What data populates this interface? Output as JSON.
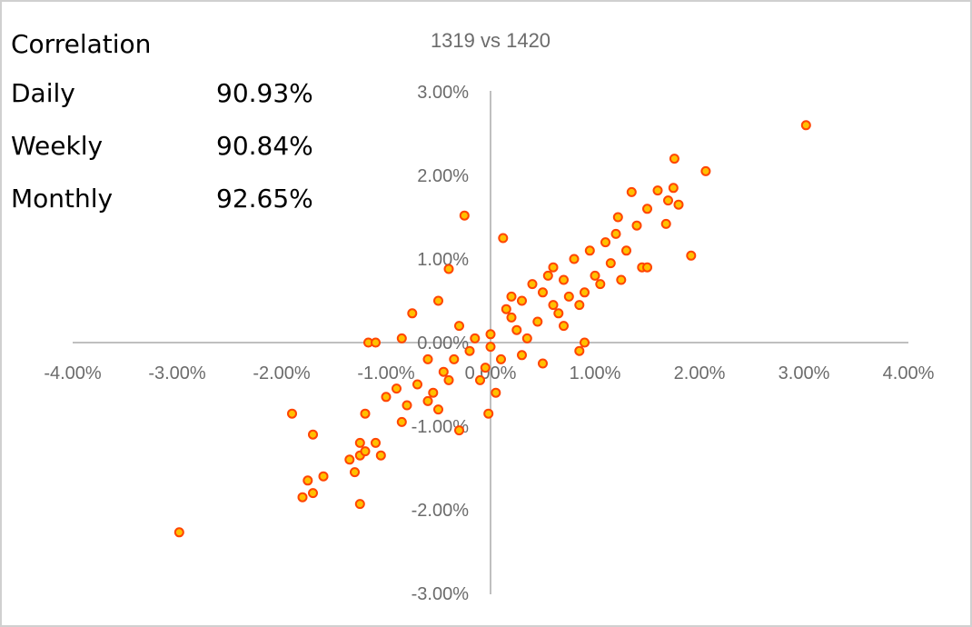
{
  "correlation": {
    "heading": "Correlation",
    "rows": [
      {
        "label": "Daily",
        "value": "90.93%"
      },
      {
        "label": "Weekly",
        "value": "90.84%"
      },
      {
        "label": "Monthly",
        "value": "92.65%"
      }
    ]
  },
  "colors": {
    "marker_fill": "#ffc000",
    "marker_stroke": "#ff4500",
    "axis": "#bfbfbf",
    "text": "#6b6b6b"
  },
  "chart_data": {
    "type": "scatter",
    "title": "1319 vs 1420",
    "xlabel": "",
    "ylabel": "",
    "xlim": [
      -4,
      4
    ],
    "ylim": [
      -3,
      3
    ],
    "x_ticks": [
      "-4.00%",
      "-3.00%",
      "-2.00%",
      "-1.00%",
      "0.00%",
      "1.00%",
      "2.00%",
      "3.00%",
      "4.00%"
    ],
    "y_ticks": [
      "3.00%",
      "2.00%",
      "1.00%",
      "0.00%",
      "-1.00%",
      "-2.00%",
      "-3.00%"
    ],
    "grid": false,
    "legend": "none",
    "series": [
      {
        "points": [
          [
            3.02,
            2.6
          ],
          [
            1.76,
            2.2
          ],
          [
            2.06,
            2.05
          ],
          [
            1.35,
            1.8
          ],
          [
            1.6,
            1.82
          ],
          [
            1.75,
            1.85
          ],
          [
            1.7,
            1.7
          ],
          [
            1.8,
            1.65
          ],
          [
            1.5,
            1.6
          ],
          [
            1.22,
            1.5
          ],
          [
            1.4,
            1.4
          ],
          [
            1.68,
            1.42
          ],
          [
            1.2,
            1.3
          ],
          [
            1.3,
            1.1
          ],
          [
            1.45,
            0.9
          ],
          [
            1.5,
            0.9
          ],
          [
            1.92,
            1.04
          ],
          [
            1.25,
            0.75
          ],
          [
            -0.25,
            1.52
          ],
          [
            0.12,
            1.25
          ],
          [
            -0.4,
            0.88
          ],
          [
            -0.5,
            0.5
          ],
          [
            -0.75,
            0.35
          ],
          [
            -1.17,
            0.0
          ],
          [
            -1.1,
            0.0
          ],
          [
            -0.85,
            0.05
          ],
          [
            -1.9,
            -0.85
          ],
          [
            -1.7,
            -1.1
          ],
          [
            -1.6,
            -1.6
          ],
          [
            -1.75,
            -1.65
          ],
          [
            -1.7,
            -1.8
          ],
          [
            -1.8,
            -1.85
          ],
          [
            -1.25,
            -1.93
          ],
          [
            -2.98,
            -2.27
          ],
          [
            -1.3,
            -1.55
          ],
          [
            -1.35,
            -1.4
          ],
          [
            -1.25,
            -1.35
          ],
          [
            -1.2,
            -1.3
          ],
          [
            -1.05,
            -1.35
          ],
          [
            -1.1,
            -1.2
          ],
          [
            -1.25,
            -1.2
          ],
          [
            -0.3,
            -1.05
          ],
          [
            -0.02,
            -0.85
          ],
          [
            -1.2,
            -0.85
          ],
          [
            -0.85,
            -0.95
          ],
          [
            -1.0,
            -0.65
          ],
          [
            0.85,
            -0.1
          ],
          [
            0.9,
            0.0
          ],
          [
            0.5,
            -0.25
          ],
          [
            -0.1,
            -0.45
          ],
          [
            0.05,
            -0.6
          ],
          [
            -0.5,
            -0.8
          ],
          [
            -0.6,
            -0.7
          ],
          [
            0.3,
            -0.15
          ],
          [
            0.7,
            0.2
          ],
          [
            0.4,
            0.7
          ],
          [
            0.8,
            1.0
          ],
          [
            0.95,
            1.1
          ],
          [
            0.6,
            0.9
          ],
          [
            1.0,
            0.8
          ],
          [
            0.2,
            0.3
          ],
          [
            0.0,
            0.1
          ],
          [
            -0.2,
            -0.1
          ],
          [
            -0.45,
            -0.35
          ],
          [
            -0.7,
            -0.5
          ],
          [
            0.5,
            0.6
          ],
          [
            1.1,
            1.2
          ],
          [
            0.75,
            0.55
          ],
          [
            0.3,
            0.5
          ],
          [
            -0.3,
            0.2
          ],
          [
            0.1,
            -0.2
          ],
          [
            -0.6,
            -0.2
          ],
          [
            0.9,
            0.6
          ],
          [
            1.05,
            0.7
          ],
          [
            0.65,
            0.35
          ],
          [
            0.45,
            0.25
          ],
          [
            -0.15,
            0.05
          ],
          [
            0.25,
            0.15
          ],
          [
            -0.4,
            -0.45
          ],
          [
            -0.8,
            -0.75
          ],
          [
            0.15,
            0.4
          ],
          [
            0.55,
            0.8
          ],
          [
            -0.05,
            -0.3
          ],
          [
            0.85,
            0.45
          ],
          [
            0.35,
            0.05
          ],
          [
            -0.35,
            -0.2
          ],
          [
            0.6,
            0.45
          ],
          [
            -0.9,
            -0.55
          ],
          [
            1.15,
            0.95
          ],
          [
            0.7,
            0.75
          ],
          [
            0.0,
            -0.05
          ],
          [
            -0.55,
            -0.6
          ],
          [
            0.2,
            0.55
          ]
        ]
      }
    ]
  }
}
